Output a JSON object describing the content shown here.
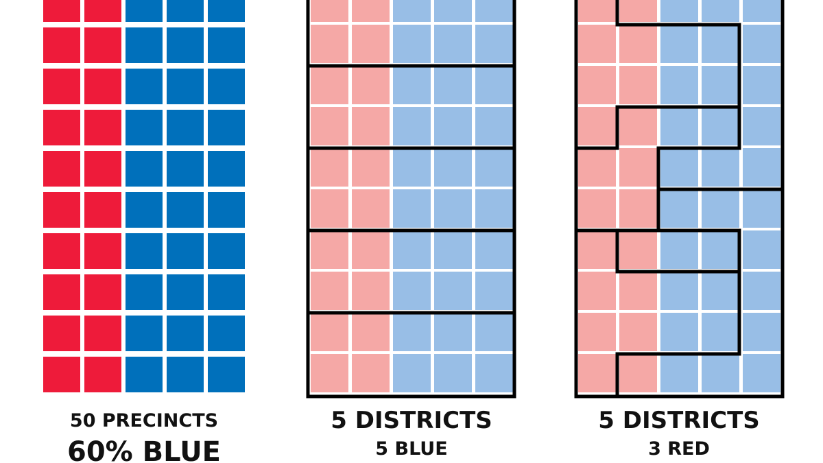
{
  "panels": [
    {
      "title": "50 PRECINCTS",
      "subtitle": "60% BLUE"
    },
    {
      "title": "5 DISTRICTS",
      "subtitle": "5 BLUE"
    },
    {
      "title": "5 DISTRICTS",
      "subtitle": "3 RED"
    }
  ]
}
